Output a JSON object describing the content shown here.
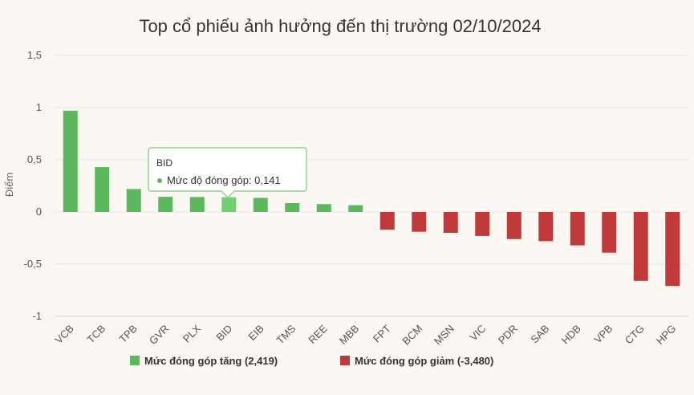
{
  "chart_data": {
    "type": "bar",
    "title": "Top cổ phiếu ảnh hưởng đến thị trường 02/10/2024",
    "ylabel": "Điểm",
    "xlabel": "",
    "ylim": [
      -1,
      1.5
    ],
    "yticks": [
      1.5,
      1,
      0.5,
      0,
      -0.5,
      -1
    ],
    "ytick_labels": [
      "1,5",
      "1",
      "0,5",
      "0",
      "-0,5",
      "-1"
    ],
    "grid": true,
    "categories": [
      "VCB",
      "TCB",
      "TPB",
      "GVR",
      "PLX",
      "BID",
      "EIB",
      "TMS",
      "REE",
      "MBB",
      "FPT",
      "BCM",
      "MSN",
      "VIC",
      "PDR",
      "SAB",
      "HDB",
      "VPB",
      "CTG",
      "HPG"
    ],
    "values": [
      0.97,
      0.43,
      0.22,
      0.145,
      0.143,
      0.141,
      0.135,
      0.085,
      0.075,
      0.065,
      -0.17,
      -0.19,
      -0.2,
      -0.23,
      -0.26,
      -0.28,
      -0.32,
      -0.39,
      -0.66,
      -0.71
    ],
    "series": [
      {
        "name": "Mức đóng góp tăng (2,419)",
        "color": "#5cb85c"
      },
      {
        "name": "Mức đóng góp giảm (-3,480)",
        "color": "#c0393b"
      }
    ],
    "legend": "bottom-center",
    "tooltip": {
      "category": "BID",
      "label": "Mức độ đóng góp: 0,141"
    },
    "highlight_color": "#72d072"
  }
}
